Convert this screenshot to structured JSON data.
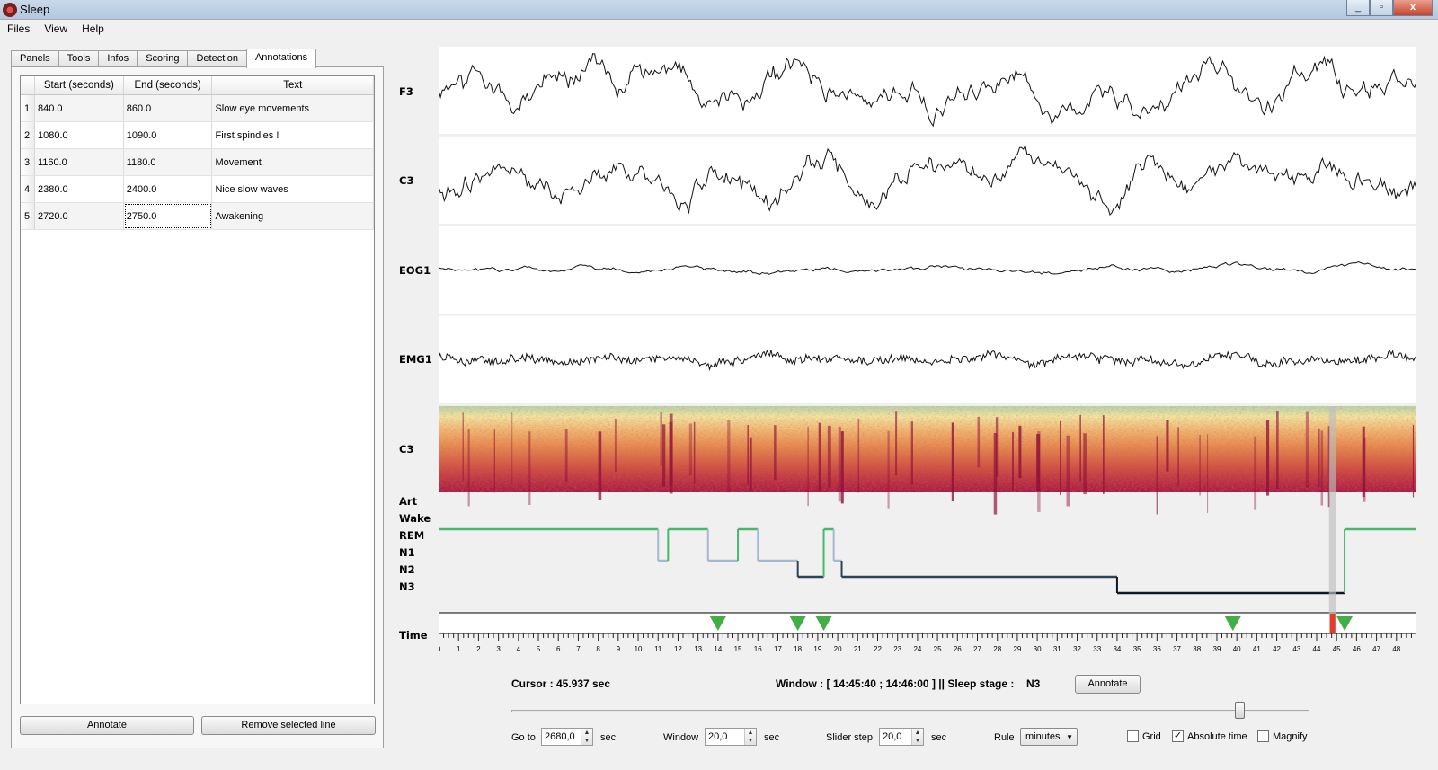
{
  "window": {
    "title": "Sleep",
    "min_label": "_",
    "max_label": "▫",
    "close_label": "x"
  },
  "menu": [
    "Files",
    "View",
    "Help"
  ],
  "tabs": [
    "Panels",
    "Tools",
    "Infos",
    "Scoring",
    "Detection",
    "Annotations"
  ],
  "active_tab": 5,
  "annotations": {
    "columns": [
      "Start (seconds)",
      "End (seconds)",
      "Text"
    ],
    "rows": [
      {
        "num": "1",
        "start": "840.0",
        "end": "860.0",
        "text": "Slow eye movements"
      },
      {
        "num": "2",
        "start": "1080.0",
        "end": "1090.0",
        "text": "First spindles !"
      },
      {
        "num": "3",
        "start": "1160.0",
        "end": "1180.0",
        "text": "Movement"
      },
      {
        "num": "4",
        "start": "2380.0",
        "end": "2400.0",
        "text": "Nice slow waves"
      },
      {
        "num": "5",
        "start": "2720.0",
        "end": "2750.0",
        "text": "Awakening"
      }
    ],
    "annotate_label": "Annotate",
    "remove_label": "Remove selected line"
  },
  "channels": [
    "F3",
    "C3",
    "EOG1",
    "EMG1"
  ],
  "spectrogram_label": "C3",
  "hypnogram": {
    "stages": [
      "Art",
      "Wake",
      "REM",
      "N1",
      "N2",
      "N3"
    ],
    "colors": {
      "wake": "#48b96b",
      "rem": "#48b96b",
      "n1": "#a3b9cf",
      "n2": "#2c4257",
      "n3": "#0e1a26"
    }
  },
  "time": {
    "label": "Time",
    "ticks": [
      "0",
      "1",
      "2",
      "3",
      "4",
      "5",
      "6",
      "7",
      "8",
      "9",
      "10",
      "11",
      "12",
      "13",
      "14",
      "15",
      "16",
      "17",
      "18",
      "19",
      "20",
      "21",
      "22",
      "23",
      "24",
      "25",
      "26",
      "27",
      "28",
      "29",
      "30",
      "31",
      "32",
      "33",
      "34",
      "35",
      "36",
      "37",
      "38",
      "39",
      "40",
      "41",
      "42",
      "43",
      "44",
      "45",
      "46",
      "47",
      "48"
    ],
    "markers_min": [
      14,
      18,
      19.3,
      39.8,
      45.4
    ],
    "cursor_min": 44.8,
    "max_min": 49
  },
  "status": {
    "cursor": "Cursor : 45.937 sec",
    "window": "Window : [ 14:45:40 ; 14:46:00 ] || Sleep stage :",
    "stage": "N3",
    "annotate_label": "Annotate"
  },
  "controls": {
    "goto_label": "Go to",
    "goto_value": "2680,0",
    "goto_unit": "sec",
    "window_label": "Window",
    "window_value": "20,0",
    "window_unit": "sec",
    "step_label": "Slider step",
    "step_value": "20,0",
    "step_unit": "sec",
    "rule_label": "Rule",
    "rule_value": "minutes",
    "grid_label": "Grid",
    "grid_checked": false,
    "abs_label": "Absolute time",
    "abs_checked": true,
    "mag_label": "Magnify",
    "mag_checked": false,
    "slider_position": 0.92
  }
}
